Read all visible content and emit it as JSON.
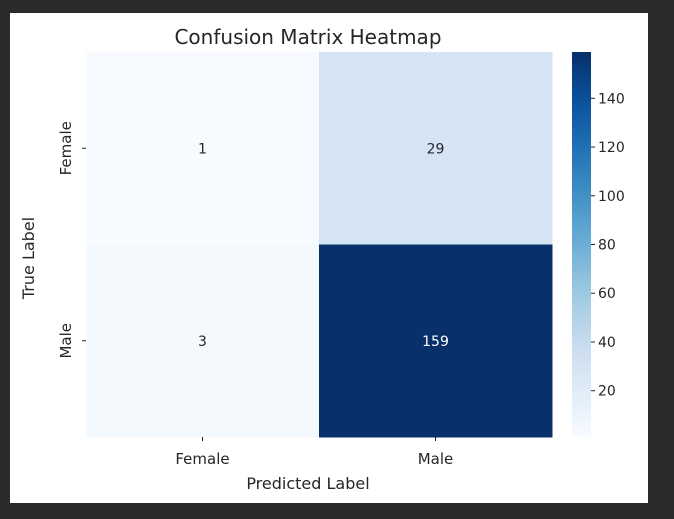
{
  "chart_data": {
    "type": "heatmap",
    "title": "Confusion Matrix Heatmap",
    "xlabel": "Predicted Label",
    "ylabel": "True Label",
    "x_categories": [
      "Female",
      "Male"
    ],
    "y_categories": [
      "Female",
      "Male"
    ],
    "values": [
      [
        1,
        29
      ],
      [
        3,
        159
      ]
    ],
    "colormap": "Blues",
    "colorbar": {
      "ticks": [
        20,
        40,
        60,
        80,
        100,
        120,
        140
      ],
      "min": 1,
      "max": 159
    },
    "annotated": true,
    "grid": false
  }
}
